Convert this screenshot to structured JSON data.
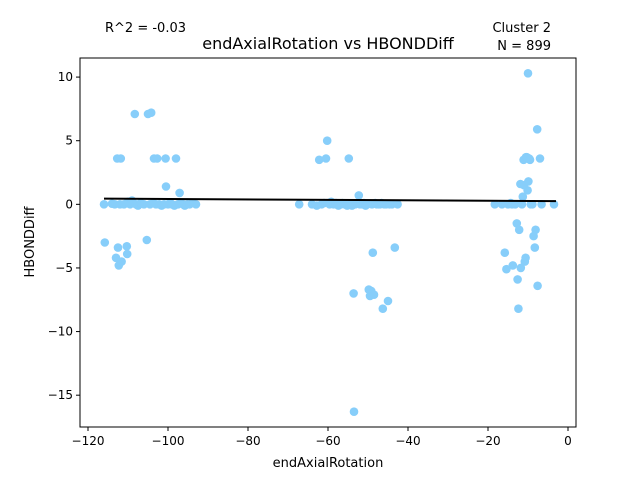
{
  "chart_data": {
    "type": "scatter",
    "title": "endAxialRotation vs HBONDDiff",
    "xlabel": "endAxialRotation",
    "ylabel": "HBONDDiff",
    "xlim": [
      -122,
      2
    ],
    "ylim": [
      -17.5,
      11.5
    ],
    "xticks": [
      -120,
      -100,
      -80,
      -60,
      -40,
      -20,
      0
    ],
    "xtick_labels": [
      "−120",
      "−100",
      "−80",
      "−60",
      "−40",
      "−20",
      "0"
    ],
    "yticks": [
      -15,
      -10,
      -5,
      0,
      5,
      10
    ],
    "ytick_labels": [
      "−15",
      "−10",
      "−5",
      "0",
      "5",
      "10"
    ],
    "grid": false,
    "annotations": {
      "r2": "R^2 = -0.03",
      "cluster": "Cluster 2",
      "n": "N = 899"
    },
    "point_color": "#87cefa",
    "line_color": "#000000",
    "fit_line": {
      "x": [
        -116,
        -3
      ],
      "y": [
        0.45,
        0.25
      ]
    },
    "points": [
      [
        -116,
        0
      ],
      [
        -115.8,
        -3
      ],
      [
        -114,
        0.05
      ],
      [
        -113.3,
        0
      ],
      [
        -113,
        -4.2
      ],
      [
        -112.7,
        3.6
      ],
      [
        -112.5,
        -3.4
      ],
      [
        -112.3,
        -4.8
      ],
      [
        -112,
        0
      ],
      [
        -111.8,
        3.6
      ],
      [
        -111.6,
        -4.5
      ],
      [
        -111,
        0
      ],
      [
        -110.3,
        -3.3
      ],
      [
        -110.2,
        -3.9
      ],
      [
        -110,
        0.2
      ],
      [
        -109.5,
        0
      ],
      [
        -109,
        0.3
      ],
      [
        -108.3,
        7.1
      ],
      [
        -108,
        0
      ],
      [
        -107.5,
        -0.1
      ],
      [
        -106.8,
        0.1
      ],
      [
        -106,
        0
      ],
      [
        -105.3,
        -2.8
      ],
      [
        -105,
        7.1
      ],
      [
        -104.5,
        0
      ],
      [
        -104.2,
        7.2
      ],
      [
        -103.7,
        0.1
      ],
      [
        -103.5,
        3.6
      ],
      [
        -103,
        0
      ],
      [
        -102.7,
        3.6
      ],
      [
        -102.2,
        0
      ],
      [
        -101.6,
        -0.1
      ],
      [
        -101,
        0
      ],
      [
        -100.6,
        3.6
      ],
      [
        -100.5,
        1.4
      ],
      [
        -100,
        0
      ],
      [
        -99.4,
        0.1
      ],
      [
        -99,
        0
      ],
      [
        -98.4,
        -0.1
      ],
      [
        -98,
        3.6
      ],
      [
        -97.5,
        0
      ],
      [
        -97.1,
        0.9
      ],
      [
        -96.7,
        0.1
      ],
      [
        -96.2,
        0
      ],
      [
        -95.8,
        -0.1
      ],
      [
        -95.2,
        0
      ],
      [
        -94.6,
        0
      ],
      [
        -93.8,
        0.1
      ],
      [
        -93,
        0
      ],
      [
        -67.2,
        0
      ],
      [
        -64,
        0
      ],
      [
        -62.8,
        -0.1
      ],
      [
        -62.2,
        3.5
      ],
      [
        -61.6,
        0
      ],
      [
        -61,
        0.1
      ],
      [
        -60.5,
        3.6
      ],
      [
        -60.2,
        5
      ],
      [
        -59.6,
        0
      ],
      [
        -59.2,
        0.2
      ],
      [
        -58.6,
        0
      ],
      [
        -58,
        0.1
      ],
      [
        -57.4,
        -0.1
      ],
      [
        -56.8,
        0
      ],
      [
        -56.4,
        0.1
      ],
      [
        -55.8,
        0
      ],
      [
        -55.2,
        -0.1
      ],
      [
        -54.8,
        3.6
      ],
      [
        -54.4,
        0
      ],
      [
        -54,
        -0.1
      ],
      [
        -53.6,
        -7
      ],
      [
        -53.2,
        0
      ],
      [
        -52.8,
        0.1
      ],
      [
        -52.3,
        0.7
      ],
      [
        -52,
        0
      ],
      [
        -51.5,
        0
      ],
      [
        -51,
        0.1
      ],
      [
        -50.6,
        -0.1
      ],
      [
        -50.2,
        0
      ],
      [
        -49.8,
        -6.7
      ],
      [
        -49.5,
        -7.2
      ],
      [
        -49.2,
        -6.8
      ],
      [
        -49,
        0
      ],
      [
        -48.8,
        -3.8
      ],
      [
        -48.5,
        -7.1
      ],
      [
        -48.2,
        0.1
      ],
      [
        -47.8,
        0
      ],
      [
        -47.4,
        0
      ],
      [
        -47,
        0
      ],
      [
        -46.6,
        0.1
      ],
      [
        -46.3,
        -8.2
      ],
      [
        -46,
        0
      ],
      [
        -45.5,
        0
      ],
      [
        -45,
        -7.6
      ],
      [
        -44.6,
        0
      ],
      [
        -44,
        0
      ],
      [
        -43.3,
        -3.4
      ],
      [
        -42.6,
        0
      ],
      [
        -53.5,
        -16.3
      ],
      [
        -18.3,
        0
      ],
      [
        -16.5,
        0
      ],
      [
        -15.8,
        -3.8
      ],
      [
        -15.4,
        -5.1
      ],
      [
        -15,
        0
      ],
      [
        -14.3,
        0.1
      ],
      [
        -14,
        0
      ],
      [
        -13.8,
        -4.8
      ],
      [
        -13.2,
        0
      ],
      [
        -12.8,
        -1.5
      ],
      [
        -12.6,
        -5.9
      ],
      [
        -12.4,
        -8.2
      ],
      [
        -12.2,
        -2
      ],
      [
        -11.9,
        1.6
      ],
      [
        -11.8,
        -5
      ],
      [
        -11.5,
        0
      ],
      [
        -11.3,
        0.6
      ],
      [
        -11.1,
        3.5
      ],
      [
        -11,
        1.5
      ],
      [
        -10.8,
        -4.5
      ],
      [
        -10.6,
        -4.2
      ],
      [
        -10.5,
        3.7
      ],
      [
        -10.3,
        3.7
      ],
      [
        -10.1,
        1.1
      ],
      [
        -10,
        10.3
      ],
      [
        -9.9,
        1.8
      ],
      [
        -9.7,
        3.6
      ],
      [
        -9.5,
        3.5
      ],
      [
        -9.3,
        0
      ],
      [
        -8.9,
        0
      ],
      [
        -8.6,
        -2.5
      ],
      [
        -8.3,
        -3.4
      ],
      [
        -8.1,
        -2
      ],
      [
        -7.7,
        5.9
      ],
      [
        -7.6,
        -6.4
      ],
      [
        -7,
        3.6
      ],
      [
        -6.6,
        0
      ],
      [
        -3.5,
        0
      ]
    ]
  }
}
